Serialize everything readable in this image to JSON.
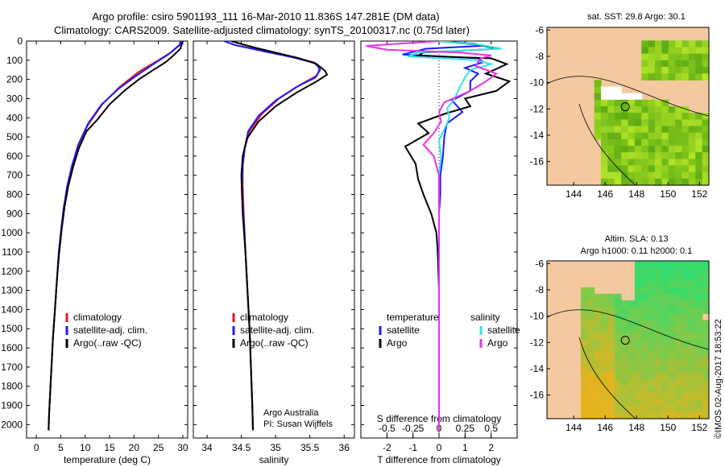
{
  "title_line1": "Argo profile: csiro 5901193_111 16-Mar-2010 11.836S 147.281E (DM data)",
  "title_line2": "Climatology: CARS2009. Satellite-adjusted climatology: synTS_20100317.nc (0.75d later)",
  "depth_ticks": [
    0,
    100,
    200,
    300,
    400,
    500,
    600,
    700,
    800,
    900,
    1000,
    1100,
    1200,
    1300,
    1400,
    1500,
    1600,
    1700,
    1800,
    1900,
    2000
  ],
  "colors": {
    "climatology": "#e8141a",
    "satellite": "#1a1aff",
    "argo": "#000000",
    "sal_satellite": "#33e6e6",
    "sal_argo": "#e633e6",
    "land": "#f4c9a0"
  },
  "chart_data": [
    {
      "type": "line",
      "name": "temperature",
      "xlabel": "temperature (deg C)",
      "ylabel": "depth",
      "xlim": [
        -2,
        31
      ],
      "ylim": [
        2070,
        0
      ],
      "xticks": [
        0,
        5,
        10,
        15,
        20,
        25,
        30
      ],
      "legend": [
        "climatology",
        "satellite-adj. clim.",
        "Argo(..raw -QC)"
      ],
      "series": [
        {
          "name": "climatology",
          "color": "#e8141a",
          "points": [
            [
              29.5,
              0
            ],
            [
              29.3,
              20
            ],
            [
              27.5,
              60
            ],
            [
              25,
              100
            ],
            [
              21,
              160
            ],
            [
              17,
              240
            ],
            [
              13.5,
              330
            ],
            [
              10.5,
              440
            ],
            [
              8.5,
              550
            ],
            [
              7.3,
              650
            ],
            [
              6.3,
              760
            ],
            [
              5.6,
              870
            ],
            [
              5.1,
              980
            ],
            [
              4.6,
              1100
            ],
            [
              4.2,
              1250
            ],
            [
              3.8,
              1400
            ],
            [
              3.4,
              1550
            ],
            [
              3.1,
              1700
            ],
            [
              2.8,
              1850
            ],
            [
              2.6,
              1950
            ],
            [
              2.5,
              2030
            ]
          ]
        },
        {
          "name": "satellite",
          "color": "#1a1aff",
          "points": [
            [
              29.6,
              0
            ],
            [
              29.4,
              20
            ],
            [
              27,
              70
            ],
            [
              24,
              120
            ],
            [
              20.5,
              180
            ],
            [
              16.8,
              250
            ],
            [
              13.4,
              330
            ],
            [
              10.6,
              430
            ],
            [
              8.6,
              540
            ],
            [
              7.3,
              650
            ],
            [
              6.3,
              760
            ],
            [
              5.6,
              870
            ],
            [
              5.1,
              980
            ],
            [
              4.6,
              1100
            ],
            [
              4.2,
              1250
            ],
            [
              3.8,
              1400
            ],
            [
              3.4,
              1550
            ],
            [
              3.1,
              1700
            ],
            [
              2.8,
              1850
            ],
            [
              2.6,
              1950
            ],
            [
              2.5,
              2030
            ]
          ]
        },
        {
          "name": "argo",
          "color": "#000000",
          "points": [
            [
              30,
              0
            ],
            [
              29.8,
              15
            ],
            [
              29.5,
              40
            ],
            [
              28.3,
              70
            ],
            [
              26.5,
              110
            ],
            [
              24,
              150
            ],
            [
              21,
              200
            ],
            [
              18,
              260
            ],
            [
              15,
              330
            ],
            [
              12.5,
              410
            ],
            [
              10.3,
              470
            ],
            [
              8.7,
              560
            ],
            [
              7.6,
              650
            ],
            [
              6.6,
              750
            ],
            [
              5.8,
              860
            ],
            [
              5.2,
              980
            ],
            [
              4.7,
              1100
            ],
            [
              4.2,
              1250
            ],
            [
              3.8,
              1400
            ],
            [
              3.4,
              1550
            ],
            [
              3.1,
              1700
            ],
            [
              2.8,
              1850
            ],
            [
              2.6,
              1950
            ],
            [
              2.5,
              2030
            ]
          ]
        }
      ]
    },
    {
      "type": "line",
      "name": "salinity",
      "xlabel": "salinity",
      "xlim": [
        33.8,
        36.15
      ],
      "xticks": [
        34,
        34.5,
        35,
        35.5,
        36
      ],
      "xticklabels": [
        "34",
        "34.5",
        "35",
        "35.5",
        "36"
      ],
      "legend": [
        "climatology",
        "satellite-adj. clim.",
        "Argo(..raw -QC)"
      ],
      "annotation": [
        "Argo Australia",
        "PI: Susan Wijffels"
      ],
      "series": [
        {
          "name": "climatology",
          "color": "#e8141a",
          "points": [
            [
              34.25,
              0
            ],
            [
              34.4,
              20
            ],
            [
              34.8,
              50
            ],
            [
              35.2,
              80
            ],
            [
              35.55,
              110
            ],
            [
              35.65,
              140
            ],
            [
              35.6,
              180
            ],
            [
              35.35,
              230
            ],
            [
              35.05,
              300
            ],
            [
              34.8,
              380
            ],
            [
              34.62,
              470
            ],
            [
              34.55,
              560
            ],
            [
              34.52,
              650
            ],
            [
              34.52,
              750
            ],
            [
              34.53,
              850
            ],
            [
              34.54,
              950
            ],
            [
              34.56,
              1100
            ],
            [
              34.59,
              1300
            ],
            [
              34.62,
              1500
            ],
            [
              34.64,
              1700
            ],
            [
              34.66,
              1900
            ],
            [
              34.67,
              2030
            ]
          ]
        },
        {
          "name": "satellite",
          "color": "#1a1aff",
          "points": [
            [
              34.25,
              0
            ],
            [
              34.4,
              20
            ],
            [
              34.85,
              55
            ],
            [
              35.25,
              85
            ],
            [
              35.58,
              115
            ],
            [
              35.65,
              150
            ],
            [
              35.58,
              190
            ],
            [
              35.3,
              240
            ],
            [
              35.0,
              310
            ],
            [
              34.75,
              390
            ],
            [
              34.6,
              470
            ],
            [
              34.55,
              560
            ],
            [
              34.52,
              650
            ],
            [
              34.51,
              750
            ],
            [
              34.52,
              850
            ],
            [
              34.54,
              950
            ],
            [
              34.56,
              1100
            ],
            [
              34.59,
              1300
            ],
            [
              34.62,
              1500
            ],
            [
              34.64,
              1700
            ],
            [
              34.66,
              1900
            ],
            [
              34.67,
              2030
            ]
          ]
        },
        {
          "name": "argo",
          "color": "#000000",
          "points": [
            [
              34.35,
              0
            ],
            [
              34.5,
              15
            ],
            [
              34.65,
              30
            ],
            [
              35.0,
              60
            ],
            [
              35.35,
              90
            ],
            [
              35.6,
              120
            ],
            [
              35.72,
              155
            ],
            [
              35.75,
              175
            ],
            [
              35.6,
              210
            ],
            [
              35.3,
              270
            ],
            [
              35.0,
              340
            ],
            [
              34.75,
              420
            ],
            [
              34.58,
              510
            ],
            [
              34.52,
              600
            ],
            [
              34.5,
              700
            ],
            [
              34.51,
              800
            ],
            [
              34.52,
              900
            ],
            [
              34.54,
              1000
            ],
            [
              34.56,
              1100
            ],
            [
              34.59,
              1300
            ],
            [
              34.62,
              1500
            ],
            [
              34.64,
              1700
            ],
            [
              34.66,
              1900
            ],
            [
              34.67,
              2030
            ]
          ]
        }
      ]
    },
    {
      "type": "line",
      "name": "difference",
      "xlabel": "T difference from climatology",
      "xlabel_top": "S difference from climatology",
      "xlim": [
        -3,
        3
      ],
      "xticks": [
        -2,
        -1,
        0,
        1,
        2
      ],
      "s_ticks": [
        -0.5,
        -0.25,
        0,
        0.25,
        0.5
      ],
      "s_ticklabels": [
        "-0.5",
        "-0.25",
        "0",
        "0.25",
        "0.5"
      ],
      "legend_headers": [
        "temperature",
        "salinity"
      ],
      "legend": [
        "satellite",
        "Argo",
        "satellite",
        "Argo"
      ],
      "series": [
        {
          "name": "T satellite",
          "color": "#1a1aff",
          "points": [
            [
              0,
              0
            ],
            [
              1.4,
              15
            ],
            [
              1.6,
              25
            ],
            [
              -0.5,
              40
            ],
            [
              -1.4,
              70
            ],
            [
              1.5,
              90
            ],
            [
              1.7,
              110
            ],
            [
              1.0,
              140
            ],
            [
              1.5,
              170
            ],
            [
              1.2,
              210
            ],
            [
              1.2,
              260
            ],
            [
              0.5,
              310
            ],
            [
              0.9,
              370
            ],
            [
              0.3,
              430
            ],
            [
              0.2,
              500
            ],
            [
              0.15,
              600
            ],
            [
              0.05,
              700
            ],
            [
              0.05,
              800
            ],
            [
              0.0,
              900
            ],
            [
              0.0,
              1000
            ],
            [
              0.0,
              1200
            ],
            [
              0.0,
              1400
            ],
            [
              0,
              1600
            ],
            [
              0,
              1800
            ],
            [
              0,
              2030
            ]
          ]
        },
        {
          "name": "T argo",
          "color": "#000000",
          "points": [
            [
              0,
              0
            ],
            [
              1.5,
              20
            ],
            [
              2.3,
              40
            ],
            [
              -0.6,
              60
            ],
            [
              -0.8,
              75
            ],
            [
              0.9,
              85
            ],
            [
              2.0,
              90
            ],
            [
              2.6,
              120
            ],
            [
              1.8,
              170
            ],
            [
              2.7,
              210
            ],
            [
              2.2,
              260
            ],
            [
              1.0,
              300
            ],
            [
              1.2,
              340
            ],
            [
              0.2,
              380
            ],
            [
              -0.8,
              430
            ],
            [
              -0.4,
              480
            ],
            [
              -1.3,
              550
            ],
            [
              -0.9,
              640
            ],
            [
              -0.8,
              720
            ],
            [
              -0.6,
              800
            ],
            [
              -0.3,
              900
            ],
            [
              -0.1,
              1000
            ],
            [
              -0.05,
              1100
            ],
            [
              0.0,
              1300
            ],
            [
              0,
              1600
            ],
            [
              0,
              2030
            ]
          ]
        },
        {
          "name": "S satellite",
          "color": "#33e6e6",
          "points": [
            [
              0,
              0
            ],
            [
              0.4,
              20
            ],
            [
              0.6,
              40
            ],
            [
              -0.2,
              60
            ],
            [
              -0.3,
              80
            ],
            [
              0.35,
              100
            ],
            [
              0.5,
              120
            ],
            [
              0.3,
              150
            ],
            [
              0.25,
              190
            ],
            [
              0.2,
              240
            ],
            [
              0.15,
              300
            ],
            [
              0.08,
              350
            ],
            [
              0.1,
              400
            ],
            [
              0.05,
              460
            ],
            [
              0.0,
              520
            ],
            [
              0.02,
              600
            ],
            [
              0.0,
              700
            ],
            [
              0,
              900
            ],
            [
              0,
              1200
            ],
            [
              0,
              1600
            ],
            [
              0,
              2030
            ]
          ]
        },
        {
          "name": "S argo",
          "color": "#e633e6",
          "points": [
            [
              0,
              0
            ],
            [
              -0.7,
              25
            ],
            [
              -0.5,
              45
            ],
            [
              0.2,
              60
            ],
            [
              0.5,
              75
            ],
            [
              0.4,
              90
            ],
            [
              0.35,
              130
            ],
            [
              0.55,
              170
            ],
            [
              0.45,
              210
            ],
            [
              0.3,
              260
            ],
            [
              0.05,
              320
            ],
            [
              0.0,
              370
            ],
            [
              0.02,
              420
            ],
            [
              -0.05,
              480
            ],
            [
              -0.15,
              540
            ],
            [
              -0.05,
              600
            ],
            [
              0.0,
              700
            ],
            [
              0,
              900
            ],
            [
              0,
              1200
            ],
            [
              0,
              1600
            ],
            [
              0,
              2030
            ]
          ]
        }
      ]
    }
  ],
  "maps": [
    {
      "title": "sat. SST: 29.8 Argo: 30.1",
      "xticklabels": [
        "144",
        "146",
        "148",
        "150",
        "152"
      ],
      "yticklabels": [
        "-6",
        "-8",
        "-10",
        "-12",
        "-14",
        "-16"
      ],
      "colorscheme": "sst"
    },
    {
      "title_line1": "Altim. SLA: 0.13",
      "title_line2": "Argo h1000: 0.11 h2000: 0.1",
      "xticklabels": [
        "144",
        "146",
        "148",
        "150",
        "152"
      ],
      "yticklabels": [
        "-6",
        "-8",
        "-10",
        "-12",
        "-14",
        "-16"
      ],
      "colorscheme": "sla"
    }
  ],
  "footer_vertical": "©IMOS 02-Aug-2017 18:53:22"
}
